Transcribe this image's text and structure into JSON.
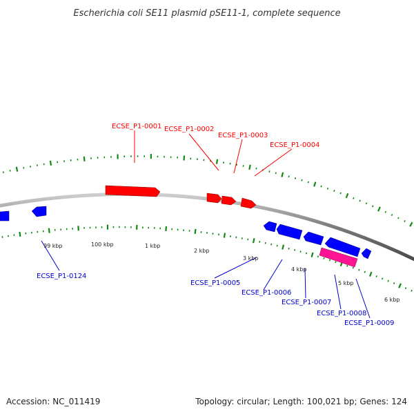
{
  "title": "Escherichia coli SE11 plasmid pSE11-1, complete sequence",
  "footer": {
    "accession": "Accession: NC_011419",
    "summary": "Topology: circular; Length: 100,021 bp; Genes: 124"
  },
  "colors": {
    "forward_gene": "#ff0000",
    "reverse_gene": "#0000ff",
    "rna_gene": "#ff1493",
    "ticks": "#118811",
    "backbone": "#888888"
  },
  "tick_labels": [
    "99 kbp",
    "100 kbp",
    "1 kbp",
    "2 kbp",
    "3 kbp",
    "4 kbp",
    "5 kbp",
    "6 kbp"
  ],
  "forward_labels": [
    "ECSE_P1-0001",
    "ECSE_P1-0002",
    "ECSE_P1-0003",
    "ECSE_P1-0004"
  ],
  "reverse_labels": [
    "ECSE_P1-0124",
    "ECSE_P1-0005",
    "ECSE_P1-0006",
    "ECSE_P1-0007",
    "ECSE_P1-0008",
    "ECSE_P1-0009"
  ]
}
